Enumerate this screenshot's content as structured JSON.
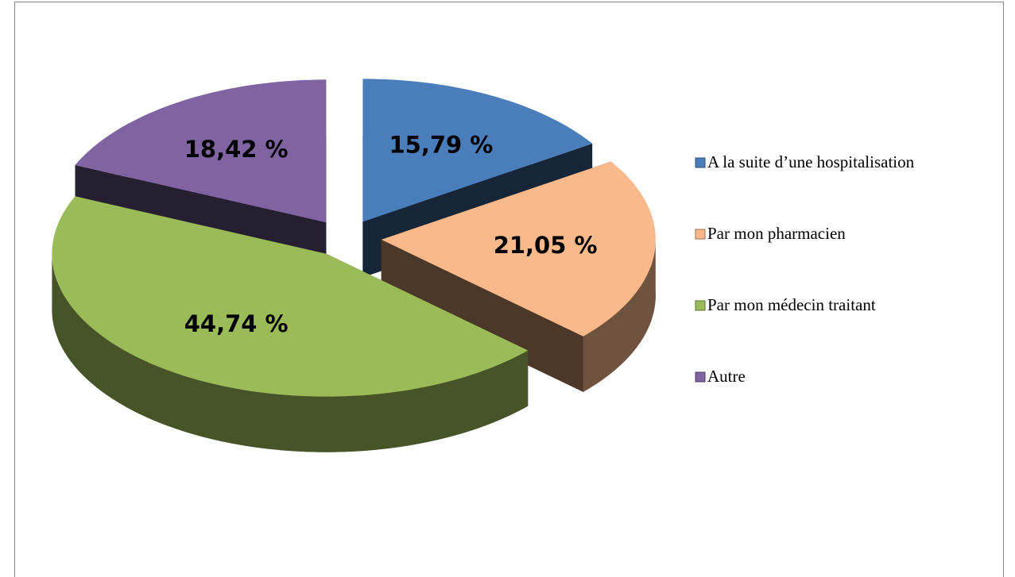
{
  "chart_data": {
    "type": "pie",
    "categories": [
      "A la suite d’une hospitalisation",
      "Par mon pharmacien",
      "Par mon médecin traitant",
      "Autre"
    ],
    "values": [
      15.79,
      21.05,
      44.74,
      18.42
    ],
    "value_labels": [
      "15,79 %",
      "21,05 %",
      "44,74 %",
      "18,42 %"
    ],
    "colors": [
      "#4a7ebb",
      "#f9b98a",
      "#9bbb59",
      "#8064a2"
    ],
    "legend": "right"
  }
}
